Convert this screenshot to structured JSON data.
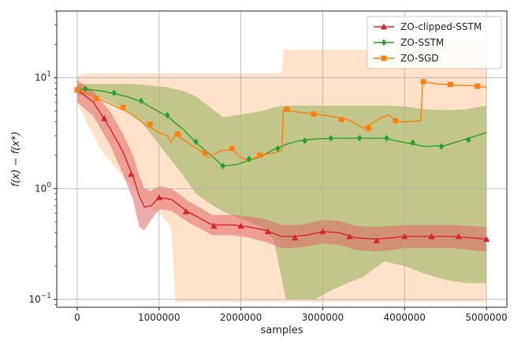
{
  "chart_data": {
    "type": "line",
    "title": "",
    "xlabel": "samples",
    "ylabel": "f(x) − f(x*)",
    "xlim": [
      -250000,
      5250000
    ],
    "ylim": [
      0.085,
      40
    ],
    "yscale": "log",
    "grid": true,
    "legend_position": "top-right",
    "x_ticks": [
      0,
      1000000,
      2000000,
      3000000,
      4000000,
      5000000
    ],
    "x_tick_labels": [
      "0",
      "1000000",
      "2000000",
      "3000000",
      "4000000",
      "5000000"
    ],
    "y_ticks": [
      0.1,
      1,
      10
    ],
    "y_tick_labels": [
      {
        "base": "10",
        "exp": "−1"
      },
      {
        "base": "10",
        "exp": "0"
      },
      {
        "base": "10",
        "exp": "1"
      }
    ],
    "series": [
      {
        "name": "ZO-clipped-SSTM",
        "color": "#d62728",
        "marker": "triangle",
        "x": [
          0,
          200000,
          400000,
          550000,
          680000,
          760000,
          820000,
          900000,
          1000000,
          1150000,
          1350000,
          1650000,
          1900000,
          2100000,
          2300000,
          2500000,
          2650000,
          2800000,
          3000000,
          3200000,
          3400000,
          3650000,
          3850000,
          4000000,
          4200000,
          4400000,
          4600000,
          4800000,
          5000000
        ],
        "y": [
          7.8,
          6.0,
          3.5,
          2.2,
          1.3,
          0.85,
          0.68,
          0.7,
          0.83,
          0.8,
          0.62,
          0.47,
          0.47,
          0.45,
          0.42,
          0.37,
          0.37,
          0.38,
          0.41,
          0.4,
          0.36,
          0.35,
          0.36,
          0.37,
          0.37,
          0.37,
          0.37,
          0.36,
          0.35
        ],
        "band_low": [
          6.0,
          4.5,
          2.5,
          1.4,
          0.8,
          0.45,
          0.42,
          0.52,
          0.65,
          0.63,
          0.5,
          0.38,
          0.38,
          0.36,
          0.33,
          0.29,
          0.29,
          0.3,
          0.32,
          0.31,
          0.28,
          0.27,
          0.28,
          0.29,
          0.29,
          0.29,
          0.29,
          0.28,
          0.27
        ],
        "band_high": [
          9.5,
          7.5,
          5.0,
          3.2,
          2.0,
          1.3,
          1.0,
          0.95,
          1.05,
          1.0,
          0.78,
          0.58,
          0.58,
          0.56,
          0.53,
          0.47,
          0.47,
          0.48,
          0.52,
          0.51,
          0.46,
          0.45,
          0.46,
          0.47,
          0.47,
          0.47,
          0.47,
          0.46,
          0.45
        ],
        "marker_x": [
          0,
          330000,
          660000,
          1000000,
          1330000,
          1670000,
          2000000,
          2330000,
          2660000,
          3000000,
          3330000,
          3660000,
          4000000,
          4330000,
          4660000,
          5000000
        ],
        "marker_y": [
          7.8,
          4.3,
          1.35,
          0.83,
          0.62,
          0.46,
          0.46,
          0.41,
          0.36,
          0.41,
          0.37,
          0.34,
          0.37,
          0.37,
          0.37,
          0.35
        ]
      },
      {
        "name": "ZO-SSTM",
        "color": "#2ca02c",
        "marker": "diamond",
        "x": [
          0,
          100000,
          300000,
          450000,
          600000,
          780000,
          900000,
          1100000,
          1300000,
          1450000,
          1600000,
          1780000,
          1950000,
          2100000,
          2250000,
          2400000,
          2550000,
          2700000,
          2900000,
          3100000,
          3300000,
          3500000,
          3750000,
          4000000,
          4250000,
          4500000,
          4750000,
          5000000
        ],
        "y": [
          7.8,
          7.9,
          7.6,
          7.2,
          6.8,
          6.1,
          5.4,
          4.5,
          3.4,
          2.6,
          2.1,
          1.6,
          1.65,
          1.8,
          1.95,
          2.25,
          2.5,
          2.7,
          2.8,
          2.85,
          2.85,
          2.85,
          2.85,
          2.6,
          2.4,
          2.45,
          2.8,
          3.2
        ],
        "band_low": [
          7.0,
          7.0,
          6.5,
          5.8,
          5.0,
          4.0,
          3.1,
          2.0,
          1.3,
          0.9,
          0.75,
          0.62,
          0.55,
          0.5,
          0.45,
          0.35,
          0.1,
          0.1,
          0.1,
          0.12,
          0.14,
          0.16,
          0.22,
          0.2,
          0.17,
          0.15,
          0.14,
          0.14
        ],
        "band_high": [
          8.6,
          8.8,
          8.8,
          8.8,
          8.8,
          8.7,
          8.5,
          8.2,
          7.6,
          6.8,
          5.6,
          4.4,
          4.6,
          4.8,
          5.0,
          5.4,
          5.6,
          5.6,
          5.6,
          5.6,
          5.6,
          5.6,
          5.6,
          5.5,
          5.2,
          5.1,
          5.2,
          5.6
        ],
        "marker_x": [
          100000,
          450000,
          780000,
          1100000,
          1450000,
          1780000,
          2100000,
          2450000,
          2780000,
          3100000,
          3450000,
          3780000,
          4100000,
          4450000,
          4780000
        ],
        "marker_y": [
          7.9,
          7.3,
          6.2,
          4.6,
          2.65,
          1.6,
          1.85,
          2.3,
          2.7,
          2.85,
          2.85,
          2.85,
          2.6,
          2.4,
          2.75
        ]
      },
      {
        "name": "ZO-SGD",
        "color": "#ff7f0e",
        "marker": "square",
        "x": [
          0,
          150000,
          300000,
          450000,
          600000,
          750000,
          850000,
          1000000,
          1100000,
          1150000,
          1200000,
          1350000,
          1500000,
          1600000,
          1750000,
          1900000,
          2000000,
          2100000,
          2250000,
          2400000,
          2500000,
          2520000,
          2700000,
          2900000,
          3100000,
          3300000,
          3500000,
          3700000,
          3800000,
          3900000,
          4000000,
          4200000,
          4220000,
          4400000,
          4600000,
          4800000,
          5000000
        ],
        "y": [
          7.8,
          7.0,
          6.3,
          5.6,
          5.0,
          4.2,
          3.7,
          3.2,
          3.0,
          2.6,
          3.1,
          2.6,
          2.2,
          1.9,
          2.2,
          2.25,
          1.9,
          1.8,
          2.0,
          2.1,
          2.2,
          5.2,
          4.9,
          4.7,
          4.5,
          4.2,
          3.5,
          4.3,
          4.6,
          4.1,
          4.0,
          4.1,
          9.2,
          8.8,
          8.6,
          8.5,
          8.2
        ],
        "band_low": [
          6.0,
          3.5,
          2.2,
          1.6,
          1.2,
          0.9,
          0.7,
          0.6,
          0.5,
          0.45,
          0.095,
          0.095,
          0.095,
          0.095,
          0.095,
          0.095,
          0.095,
          0.095,
          0.095,
          0.095,
          0.095,
          0.095,
          0.095,
          0.095,
          0.095,
          0.095,
          0.095,
          0.095,
          0.095,
          0.095,
          0.095,
          0.095,
          0.095,
          0.095,
          0.095,
          0.095,
          0.095
        ],
        "band_high": [
          10.5,
          11,
          11,
          11,
          11,
          11,
          11,
          11,
          11,
          11,
          11,
          11,
          11,
          11,
          11,
          11,
          11,
          11,
          11,
          11,
          11,
          18,
          18,
          18,
          18,
          18,
          18,
          18,
          18,
          18,
          18,
          18,
          22,
          22,
          22,
          22,
          22
        ],
        "marker_x": [
          0,
          230000,
          560000,
          890000,
          1230000,
          1560000,
          1890000,
          2230000,
          2560000,
          2890000,
          3230000,
          3560000,
          3890000,
          4230000,
          4560000,
          4890000
        ],
        "marker_y": [
          7.8,
          6.5,
          5.4,
          3.8,
          3.1,
          2.1,
          2.3,
          2.0,
          5.2,
          4.7,
          4.2,
          3.5,
          4.1,
          9.2,
          8.7,
          8.4
        ]
      }
    ]
  }
}
